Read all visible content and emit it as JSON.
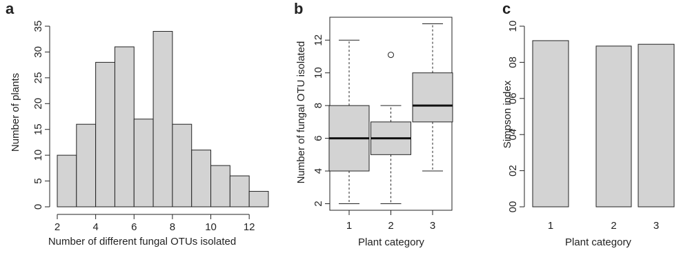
{
  "chart_data": [
    {
      "panel_label": "a",
      "type": "bar",
      "subtype": "histogram",
      "xlabel": "Number of different fungal OTUs isolated",
      "ylabel": "Number of plants",
      "bins": [
        {
          "from": 2,
          "to": 3,
          "count": 10
        },
        {
          "from": 3,
          "to": 4,
          "count": 16
        },
        {
          "from": 4,
          "to": 5,
          "count": 28
        },
        {
          "from": 5,
          "to": 6,
          "count": 31
        },
        {
          "from": 6,
          "to": 7,
          "count": 17
        },
        {
          "from": 7,
          "to": 8,
          "count": 34
        },
        {
          "from": 8,
          "to": 9,
          "count": 16
        },
        {
          "from": 9,
          "to": 10,
          "count": 11
        },
        {
          "from": 10,
          "to": 11,
          "count": 8
        },
        {
          "from": 11,
          "to": 12,
          "count": 6
        },
        {
          "from": 12,
          "to": 13,
          "count": 3
        }
      ],
      "xlim": [
        2,
        13
      ],
      "ylim": [
        0,
        35
      ],
      "xticks": [
        "2",
        "4",
        "6",
        "8",
        "10",
        "12"
      ],
      "yticks": [
        "0",
        "5",
        "10",
        "15",
        "20",
        "25",
        "30",
        "35"
      ],
      "grid": false,
      "fill_color": "#d3d3d3"
    },
    {
      "panel_label": "b",
      "type": "boxplot",
      "xlabel": "Plant category",
      "ylabel": "Number of fungal OTU isolated",
      "categories": [
        "1",
        "2",
        "3"
      ],
      "boxes": [
        {
          "category": "1",
          "whisker_low": 2,
          "q1": 4,
          "median": 6,
          "q3": 8,
          "whisker_high": 12,
          "outliers": []
        },
        {
          "category": "2",
          "whisker_low": 2,
          "q1": 5,
          "median": 6,
          "q3": 7,
          "whisker_high": 8,
          "outliers": [
            11.1
          ]
        },
        {
          "category": "3",
          "whisker_low": 4,
          "q1": 7,
          "median": 8,
          "q3": 10,
          "whisker_high": 13,
          "outliers": []
        }
      ],
      "ylim": [
        1.6,
        13.4
      ],
      "yticks": [
        "2",
        "4",
        "6",
        "8",
        "10",
        "12"
      ],
      "grid": false,
      "fill_color": "#d3d3d3"
    },
    {
      "panel_label": "c",
      "type": "bar",
      "xlabel": "Plant category",
      "ylabel": "Simpson index",
      "categories": [
        "1",
        "2",
        "3"
      ],
      "values": [
        0.92,
        0.89,
        0.9
      ],
      "ylim": [
        0,
        1.0
      ],
      "ytick_values": [
        0,
        0.2,
        0.4,
        0.6,
        0.8,
        1.0
      ],
      "yticks": [
        "00",
        "02",
        "04",
        "06",
        "08",
        "10"
      ],
      "grid": false,
      "fill_color": "#d3d3d3"
    }
  ]
}
